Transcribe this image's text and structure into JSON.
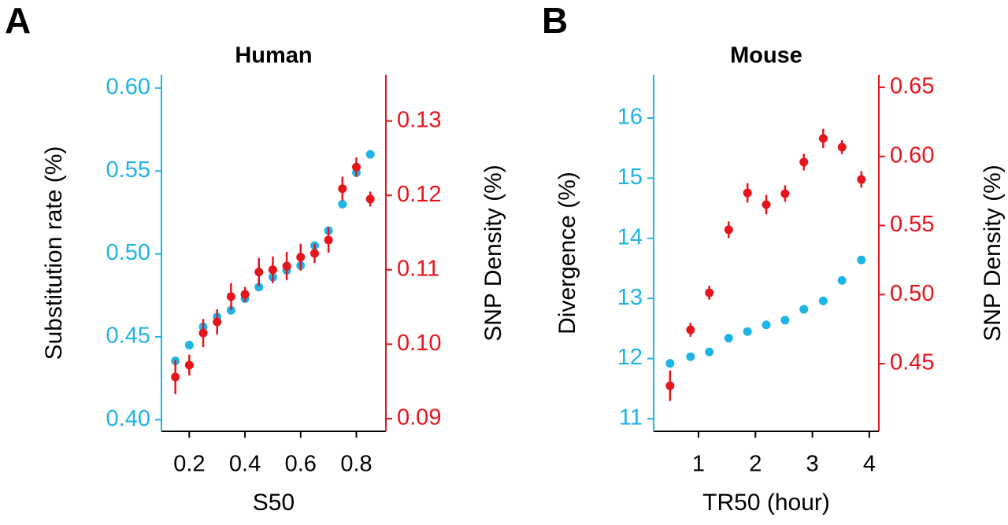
{
  "chart_data": [
    {
      "type": "scatter",
      "panel_label": "A",
      "title": "Human",
      "x_label": "S50",
      "y_label": "Substitution rate (%)",
      "y2_label": "SNP Density (%)",
      "xlim": [
        0.1,
        0.906
      ],
      "xticks": [
        0.2,
        0.4,
        0.6,
        0.8
      ],
      "ylim": [
        0.393,
        0.608
      ],
      "yticks": [
        {
          "value": 0.4,
          "label": "0.40"
        },
        0.45,
        {
          "value": 0.5,
          "label": "0.50"
        },
        0.55,
        {
          "value": 0.6,
          "label": "0.60"
        }
      ],
      "y2lim": [
        0.0883,
        0.1362
      ],
      "y2ticks": [
        0.09,
        {
          "value": 0.1,
          "label": "0.10"
        },
        0.11,
        0.12,
        0.13
      ],
      "series": [
        {
          "color": "#1db4e6",
          "x": [
            0.15,
            0.2,
            0.25,
            0.3,
            0.35,
            0.4,
            0.45,
            0.5,
            0.55,
            0.6,
            0.65,
            0.7,
            0.75,
            0.8,
            0.85
          ],
          "values": [
            0.4355,
            0.445,
            0.456,
            0.462,
            0.466,
            0.473,
            0.48,
            0.486,
            0.49,
            0.493,
            0.505,
            0.514,
            0.53,
            0.549,
            0.56
          ]
        },
        {
          "color": "#e6141b",
          "axis": "y2",
          "x": [
            0.15,
            0.2,
            0.25,
            0.3,
            0.35,
            0.4,
            0.45,
            0.5,
            0.55,
            0.6,
            0.65,
            0.7,
            0.75,
            0.8,
            0.85
          ],
          "values": [
            0.0956,
            0.0972,
            0.1015,
            0.103,
            0.1064,
            0.1067,
            0.1097,
            0.11,
            0.1105,
            0.1117,
            0.1122,
            0.114,
            0.1209,
            0.1238,
            0.1195
          ],
          "errors": [
            0.0023,
            0.0014,
            0.0019,
            0.0017,
            0.0018,
            0.001,
            0.0019,
            0.0018,
            0.0019,
            0.0018,
            0.0013,
            0.0017,
            0.0016,
            0.0013,
            0.001
          ]
        }
      ]
    },
    {
      "type": "scatter",
      "panel_label": "B",
      "title": "Mouse",
      "x_label": "TR50 (hour)",
      "y_label": "Divergence (%)",
      "y2_label": "SNP Density (%)",
      "xlim": [
        0.212,
        4.167
      ],
      "xticks": [
        1,
        2,
        3,
        4
      ],
      "ylim": [
        10.79,
        16.72
      ],
      "yticks": [
        11,
        12,
        13,
        14,
        15,
        16
      ],
      "y2lim": [
        0.401,
        0.6591
      ],
      "y2ticks": [
        0.45,
        {
          "value": 0.5,
          "label": "0.50"
        },
        0.55,
        {
          "value": 0.6,
          "label": "0.60"
        },
        0.65
      ],
      "series": [
        {
          "color": "#1db4e6",
          "x": [
            0.5,
            0.86,
            1.19,
            1.53,
            1.86,
            2.19,
            2.52,
            2.85,
            3.19,
            3.52,
            3.86
          ],
          "values": [
            11.92,
            12.03,
            12.11,
            12.34,
            12.45,
            12.56,
            12.64,
            12.82,
            12.96,
            13.3,
            13.64
          ]
        },
        {
          "color": "#e6141b",
          "axis": "y2",
          "x": [
            0.5,
            0.86,
            1.19,
            1.53,
            1.86,
            2.19,
            2.52,
            2.85,
            3.19,
            3.52,
            3.86
          ],
          "values": [
            0.434,
            0.4745,
            0.5013,
            0.5469,
            0.5736,
            0.5651,
            0.5731,
            0.5959,
            0.613,
            0.6067,
            0.5833
          ],
          "errors": [
            0.011,
            0.005,
            0.005,
            0.006,
            0.007,
            0.007,
            0.006,
            0.006,
            0.007,
            0.005,
            0.006
          ]
        }
      ]
    }
  ]
}
